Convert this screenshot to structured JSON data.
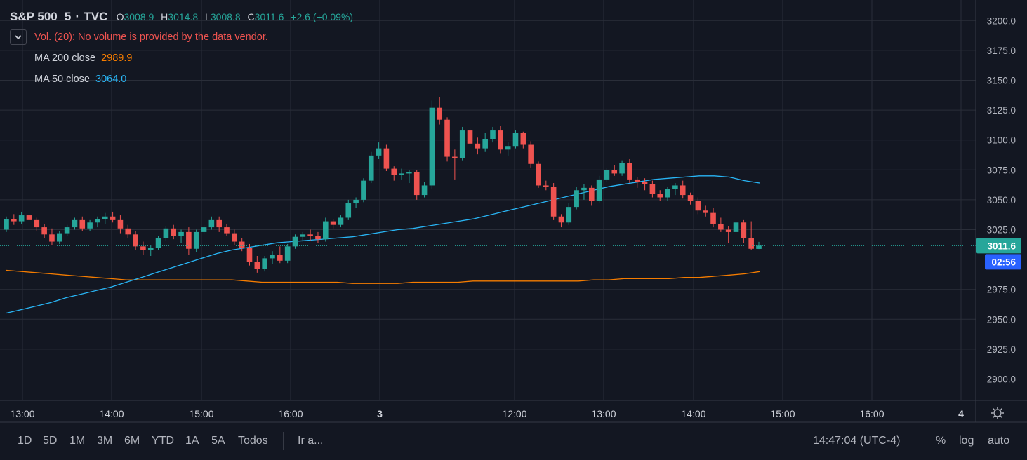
{
  "legend": {
    "symbol": "S&P 500",
    "interval": "5",
    "source": "TVC",
    "open_label": "O",
    "open": "3008.9",
    "high_label": "H",
    "high": "3014.8",
    "low_label": "L",
    "low": "3008.8",
    "close_label": "C",
    "close": "3011.6",
    "change": "+2.6 (+0.09%)"
  },
  "indicators": {
    "volume_message": "Vol. (20): No volume is provided by the data vendor.",
    "ma200": {
      "label": "MA 200 close",
      "value": "2989.9",
      "color": "#f57c00"
    },
    "ma50": {
      "label": "MA 50 close",
      "value": "3064.0",
      "color": "#29b6f6"
    }
  },
  "price_axis": {
    "ticks": [
      "3200.0",
      "3175.0",
      "3150.0",
      "3125.0",
      "3100.0",
      "3075.0",
      "3050.0",
      "3025.0",
      "2975.0",
      "2950.0",
      "2925.0",
      "2900.0"
    ],
    "last_price_label": "3011.6",
    "countdown_label": "02:56"
  },
  "time_axis": {
    "labels": [
      "13:00",
      "14:00",
      "15:00",
      "16:00",
      "3",
      "12:00",
      "13:00",
      "14:00",
      "15:00",
      "16:00",
      "4"
    ]
  },
  "bottom_bar": {
    "ranges": [
      "1D",
      "5D",
      "1M",
      "3M",
      "6M",
      "YTD",
      "1A",
      "5A",
      "Todos"
    ],
    "goto": "Ir a...",
    "clock": "14:47:04 (UTC-4)",
    "percent": "%",
    "log": "log",
    "auto": "auto"
  },
  "colors": {
    "background": "#131722",
    "up": "#26a69a",
    "down": "#ef5350",
    "grid": "#2a2e39",
    "last_price_bg": "#26a69a",
    "countdown_bg": "#2962ff"
  },
  "chart_data": {
    "type": "candlestick",
    "ylim": [
      2885,
      3215
    ],
    "close_price": 3011.6,
    "candles": [
      [
        3025,
        3036,
        3023,
        3034
      ],
      [
        3034,
        3038,
        3029,
        3032
      ],
      [
        3032,
        3040,
        3030,
        3037
      ],
      [
        3037,
        3039,
        3030,
        3033
      ],
      [
        3033,
        3035,
        3024,
        3027
      ],
      [
        3027,
        3030,
        3018,
        3021
      ],
      [
        3021,
        3026,
        3012,
        3015
      ],
      [
        3015,
        3024,
        3013,
        3022
      ],
      [
        3022,
        3029,
        3020,
        3027
      ],
      [
        3027,
        3035,
        3025,
        3033
      ],
      [
        3033,
        3036,
        3024,
        3026
      ],
      [
        3026,
        3033,
        3024,
        3031
      ],
      [
        3031,
        3036,
        3027,
        3034
      ],
      [
        3034,
        3039,
        3030,
        3036
      ],
      [
        3036,
        3040,
        3031,
        3033
      ],
      [
        3033,
        3037,
        3022,
        3026
      ],
      [
        3026,
        3029,
        3018,
        3021
      ],
      [
        3021,
        3024,
        3008,
        3011
      ],
      [
        3011,
        3015,
        3004,
        3008
      ],
      [
        3008,
        3012,
        3003,
        3010
      ],
      [
        3010,
        3020,
        3008,
        3018
      ],
      [
        3018,
        3028,
        3016,
        3026
      ],
      [
        3026,
        3029,
        3017,
        3020
      ],
      [
        3020,
        3025,
        3014,
        3023
      ],
      [
        3023,
        3027,
        3004,
        3009
      ],
      [
        3009,
        3025,
        3006,
        3023
      ],
      [
        3023,
        3029,
        3021,
        3027
      ],
      [
        3027,
        3036,
        3025,
        3033
      ],
      [
        3033,
        3036,
        3023,
        3027
      ],
      [
        3027,
        3030,
        3020,
        3022
      ],
      [
        3022,
        3025,
        3012,
        3015
      ],
      [
        3015,
        3018,
        3007,
        3010
      ],
      [
        3010,
        3013,
        2995,
        2998
      ],
      [
        2998,
        3003,
        2989,
        2992
      ],
      [
        2992,
        3003,
        2990,
        3001
      ],
      [
        3001,
        3007,
        2996,
        3004
      ],
      [
        3004,
        3011,
        2997,
        2999
      ],
      [
        2999,
        3013,
        2997,
        3011
      ],
      [
        3011,
        3021,
        3009,
        3019
      ],
      [
        3019,
        3023,
        3015,
        3021
      ],
      [
        3021,
        3025,
        3016,
        3020
      ],
      [
        3020,
        3023,
        3014,
        3017
      ],
      [
        3017,
        3035,
        3015,
        3032
      ],
      [
        3032,
        3034,
        3026,
        3029
      ],
      [
        3029,
        3037,
        3027,
        3035
      ],
      [
        3035,
        3050,
        3033,
        3047
      ],
      [
        3047,
        3052,
        3043,
        3050
      ],
      [
        3050,
        3068,
        3048,
        3066
      ],
      [
        3066,
        3090,
        3064,
        3087
      ],
      [
        3087,
        3098,
        3084,
        3093
      ],
      [
        3093,
        3096,
        3074,
        3076
      ],
      [
        3076,
        3078,
        3066,
        3071
      ],
      [
        3071,
        3076,
        3067,
        3072
      ],
      [
        3072,
        3075,
        3064,
        3073
      ],
      [
        3073,
        3075,
        3050,
        3054
      ],
      [
        3054,
        3065,
        3052,
        3062
      ],
      [
        3062,
        3133,
        3059,
        3127
      ],
      [
        3127,
        3136,
        3113,
        3117
      ],
      [
        3117,
        3119,
        3082,
        3086
      ],
      [
        3086,
        3092,
        3067,
        3085
      ],
      [
        3085,
        3111,
        3083,
        3108
      ],
      [
        3108,
        3110,
        3094,
        3097
      ],
      [
        3097,
        3102,
        3088,
        3093
      ],
      [
        3093,
        3106,
        3090,
        3101
      ],
      [
        3101,
        3111,
        3098,
        3108
      ],
      [
        3108,
        3112,
        3089,
        3092
      ],
      [
        3092,
        3098,
        3087,
        3095
      ],
      [
        3095,
        3108,
        3093,
        3106
      ],
      [
        3106,
        3107,
        3093,
        3096
      ],
      [
        3096,
        3099,
        3077,
        3080
      ],
      [
        3080,
        3082,
        3060,
        3062
      ],
      [
        3062,
        3066,
        3058,
        3061
      ],
      [
        3061,
        3064,
        3033,
        3036
      ],
      [
        3036,
        3038,
        3027,
        3031
      ],
      [
        3031,
        3047,
        3029,
        3044
      ],
      [
        3044,
        3061,
        3042,
        3058
      ],
      [
        3058,
        3063,
        3050,
        3060
      ],
      [
        3060,
        3062,
        3045,
        3049
      ],
      [
        3049,
        3070,
        3047,
        3067
      ],
      [
        3067,
        3077,
        3065,
        3075
      ],
      [
        3075,
        3079,
        3070,
        3072
      ],
      [
        3072,
        3083,
        3070,
        3081
      ],
      [
        3081,
        3084,
        3064,
        3067
      ],
      [
        3067,
        3069,
        3060,
        3065
      ],
      [
        3065,
        3068,
        3058,
        3063
      ],
      [
        3063,
        3066,
        3052,
        3055
      ],
      [
        3055,
        3058,
        3049,
        3052
      ],
      [
        3052,
        3061,
        3049,
        3059
      ],
      [
        3059,
        3064,
        3054,
        3062
      ],
      [
        3062,
        3066,
        3051,
        3054
      ],
      [
        3054,
        3056,
        3046,
        3049
      ],
      [
        3049,
        3052,
        3038,
        3041
      ],
      [
        3041,
        3045,
        3036,
        3039
      ],
      [
        3039,
        3043,
        3027,
        3030
      ],
      [
        3030,
        3035,
        3023,
        3025
      ],
      [
        3025,
        3028,
        3014,
        3023
      ],
      [
        3023,
        3034,
        3020,
        3031
      ],
      [
        3031,
        3033,
        3014,
        3018
      ],
      [
        3018,
        3032,
        3008,
        3009
      ],
      [
        3008.9,
        3014.8,
        3008.8,
        3011.6
      ]
    ],
    "ma50": [
      2955,
      2958,
      2961,
      2964,
      2968,
      2971,
      2974,
      2977,
      2981,
      2985,
      2989,
      2993,
      2997,
      3001,
      3005,
      3008,
      3010,
      3012,
      3014,
      3015,
      3016,
      3017,
      3018,
      3019,
      3021,
      3023,
      3025,
      3026,
      3028,
      3030,
      3032,
      3034,
      3037,
      3040,
      3043,
      3046,
      3049,
      3052,
      3055,
      3058,
      3061,
      3063,
      3065,
      3067,
      3068,
      3069,
      3070,
      3070,
      3069,
      3066,
      3064
    ],
    "ma200": [
      2991,
      2990,
      2989,
      2988,
      2987,
      2986,
      2985,
      2984,
      2983,
      2983,
      2983,
      2983,
      2983,
      2983,
      2983,
      2983,
      2982,
      2981,
      2981,
      2981,
      2981,
      2981,
      2981,
      2980,
      2980,
      2980,
      2980,
      2981,
      2981,
      2981,
      2981,
      2982,
      2982,
      2982,
      2982,
      2982,
      2982,
      2982,
      2982,
      2983,
      2983,
      2984,
      2984,
      2984,
      2984,
      2985,
      2985,
      2986,
      2987,
      2988,
      2989.9
    ]
  }
}
